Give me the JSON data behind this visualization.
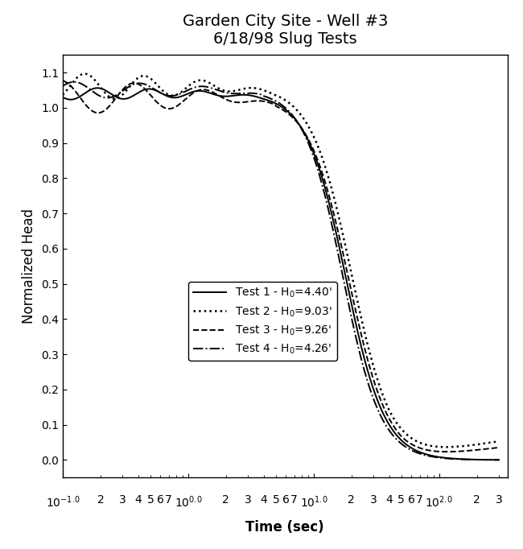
{
  "title_line1": "Garden City Site - Well #3",
  "title_line2": "6/18/98 Slug Tests",
  "xlabel": "Time (sec)",
  "ylabel": "Normalized Head",
  "xlim": [
    0.1,
    350
  ],
  "ylim": [
    -0.05,
    1.15
  ],
  "legend_entries": [
    "Test 1 - H$_0$=4.40'",
    "Test 2 - H$_0$=9.03'",
    "Test 3 - H$_0$=9.26'",
    "Test 4 - H$_0$=4.26'"
  ],
  "background_color": "#ffffff",
  "yticks": [
    0.0,
    0.1,
    0.2,
    0.3,
    0.4,
    0.5,
    0.6,
    0.7,
    0.8,
    0.9,
    1.0,
    1.1
  ],
  "title_fontsize": 14,
  "label_fontsize": 12,
  "tick_fontsize": 10,
  "legend_fontsize": 10
}
